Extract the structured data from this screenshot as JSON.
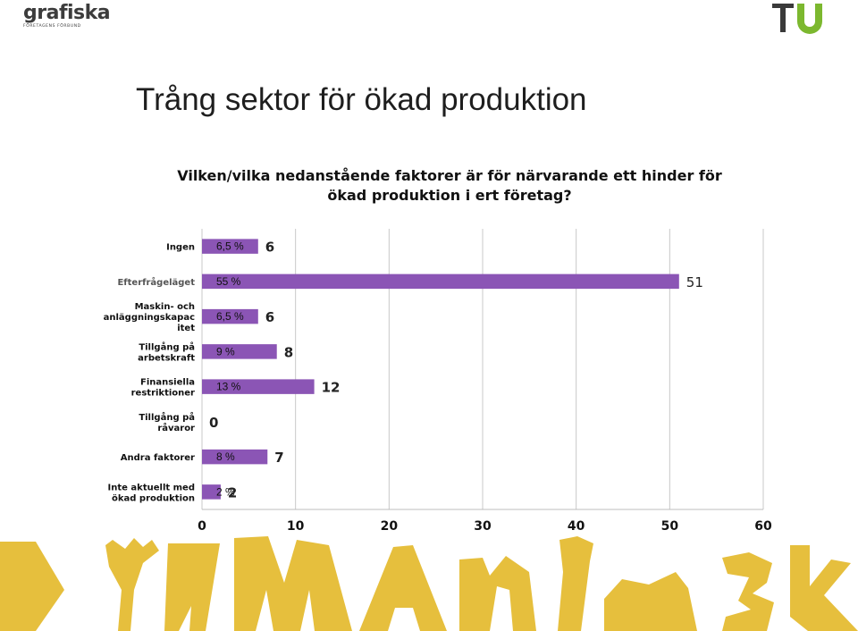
{
  "header": {
    "left_logo": {
      "name": "grafiska",
      "tagline": "FÖRETAGENS FÖRBUND"
    },
    "right_logo": {
      "name": "TU",
      "colors": {
        "T": "#3a3a3a",
        "U": "#7cb82f"
      }
    }
  },
  "slide": {
    "title": "Trång sektor för ökad produktion"
  },
  "chart_data": {
    "type": "bar",
    "orientation": "horizontal",
    "title": "Vilken/vilka nedanstående faktorer är för närvarande ett hinder för ökad produktion i ert företag?",
    "title_lines": [
      "Vilken/vilka nedanstående faktorer är för närvarande ett hinder för",
      "ökad produktion i ert företag?"
    ],
    "categories": [
      [
        "Ingen"
      ],
      [
        "Efterfrågeläget"
      ],
      [
        "Maskin- och",
        "anläggningskapac",
        "itet"
      ],
      [
        "Tillgång på",
        "arbetskraft"
      ],
      [
        "Finansiella",
        "restriktioner"
      ],
      [
        "Tillgång på",
        "råvaror"
      ],
      [
        "Andra faktorer"
      ],
      [
        "Inte aktuellt med",
        "ökad produktion"
      ]
    ],
    "values": [
      6,
      51,
      6,
      8,
      12,
      0,
      7,
      2
    ],
    "value_labels": [
      "6",
      "51",
      "6",
      "8",
      "12",
      "0",
      "7",
      "2"
    ],
    "percent_labels": [
      "6,5 %",
      "55 %",
      "6,5 %",
      "9 %",
      "13 %",
      "",
      "8 %",
      "2 %"
    ],
    "xlim": [
      0,
      60
    ],
    "xticks": [
      0,
      10,
      20,
      30,
      40,
      50,
      60
    ],
    "grid": true,
    "bar_color": "#8b55b5",
    "legend": "none"
  },
  "decor": {
    "bottom_band_color": "#e6bf3d"
  }
}
